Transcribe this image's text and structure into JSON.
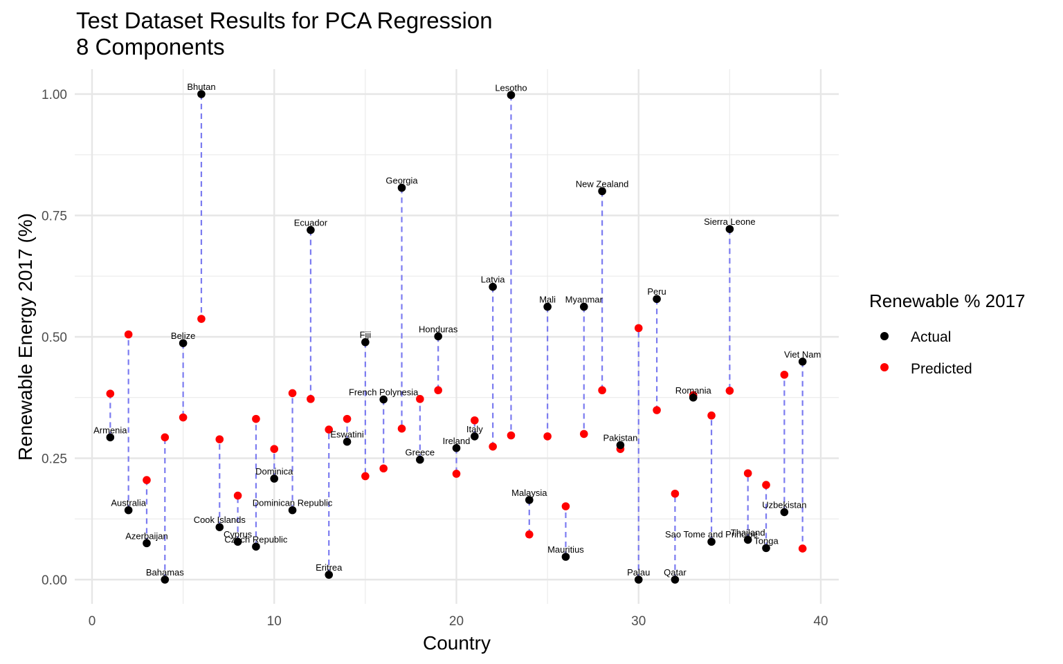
{
  "chart_data": {
    "type": "scatter",
    "title": "Test Dataset Results for PCA Regression",
    "subtitle": "8 Components",
    "xlabel": "Country",
    "ylabel": "Renewable Energy 2017 (%)",
    "xlim": [
      0,
      40
    ],
    "ylim": [
      0,
      1
    ],
    "x_ticks": [
      0,
      10,
      20,
      30,
      40
    ],
    "x_tick_labels": [
      "0",
      "10",
      "20",
      "30",
      "40"
    ],
    "y_ticks": [
      0,
      0.25,
      0.5,
      0.75,
      1
    ],
    "y_tick_labels": [
      "0.00",
      "0.25",
      "0.50",
      "0.75",
      "1.00"
    ],
    "grid": true,
    "legend": {
      "title": "Renewable % 2017",
      "position": "right",
      "entries": [
        {
          "label": "Actual",
          "color": "#000000"
        },
        {
          "label": "Predicted",
          "color": "#ff0000"
        }
      ]
    },
    "connector_color": "#7b7bf0",
    "points": [
      {
        "x": 1,
        "country": "Armenia",
        "actual": 0.293,
        "predicted": 0.383
      },
      {
        "x": 2,
        "country": "Australia",
        "actual": 0.143,
        "predicted": 0.505
      },
      {
        "x": 3,
        "country": "Azerbaijan",
        "actual": 0.075,
        "predicted": 0.205
      },
      {
        "x": 4,
        "country": "Bahamas",
        "actual": 0.0,
        "predicted": 0.293
      },
      {
        "x": 5,
        "country": "Belize",
        "actual": 0.487,
        "predicted": 0.334
      },
      {
        "x": 6,
        "country": "Bhutan",
        "actual": 1.0,
        "predicted": 0.537
      },
      {
        "x": 7,
        "country": "Cook Islands",
        "actual": 0.108,
        "predicted": 0.289
      },
      {
        "x": 8,
        "country": "Cyprus",
        "actual": 0.078,
        "predicted": 0.173
      },
      {
        "x": 9,
        "country": "Czech Republic",
        "actual": 0.068,
        "predicted": 0.331
      },
      {
        "x": 10,
        "country": "Dominica",
        "actual": 0.208,
        "predicted": 0.269
      },
      {
        "x": 11,
        "country": "Dominican Republic",
        "actual": 0.143,
        "predicted": 0.384
      },
      {
        "x": 12,
        "country": "Ecuador",
        "actual": 0.72,
        "predicted": 0.372
      },
      {
        "x": 13,
        "country": "Eritrea",
        "actual": 0.01,
        "predicted": 0.309
      },
      {
        "x": 14,
        "country": "Eswatini",
        "actual": 0.284,
        "predicted": 0.331
      },
      {
        "x": 15,
        "country": "Fiji",
        "actual": 0.489,
        "predicted": 0.213
      },
      {
        "x": 16,
        "country": "French Polynesia",
        "actual": 0.371,
        "predicted": 0.229
      },
      {
        "x": 17,
        "country": "Georgia",
        "actual": 0.807,
        "predicted": 0.311
      },
      {
        "x": 18,
        "country": "Greece",
        "actual": 0.247,
        "predicted": 0.372
      },
      {
        "x": 19,
        "country": "Honduras",
        "actual": 0.501,
        "predicted": 0.39
      },
      {
        "x": 20,
        "country": "Ireland",
        "actual": 0.271,
        "predicted": 0.218
      },
      {
        "x": 21,
        "country": "Italy",
        "actual": 0.295,
        "predicted": 0.328
      },
      {
        "x": 22,
        "country": "Latvia",
        "actual": 0.603,
        "predicted": 0.274
      },
      {
        "x": 23,
        "country": "Lesotho",
        "actual": 0.998,
        "predicted": 0.297
      },
      {
        "x": 24,
        "country": "Malaysia",
        "actual": 0.164,
        "predicted": 0.093
      },
      {
        "x": 25,
        "country": "Mali",
        "actual": 0.562,
        "predicted": 0.295
      },
      {
        "x": 26,
        "country": "Mauritius",
        "actual": 0.047,
        "predicted": 0.151
      },
      {
        "x": 27,
        "country": "Myanmar",
        "actual": 0.562,
        "predicted": 0.3
      },
      {
        "x": 28,
        "country": "New Zealand",
        "actual": 0.8,
        "predicted": 0.39
      },
      {
        "x": 29,
        "country": "Pakistan",
        "actual": 0.277,
        "predicted": 0.269
      },
      {
        "x": 30,
        "country": "Palau",
        "actual": 0.0,
        "predicted": 0.518
      },
      {
        "x": 31,
        "country": "Peru",
        "actual": 0.578,
        "predicted": 0.349
      },
      {
        "x": 32,
        "country": "Qatar",
        "actual": 0.0,
        "predicted": 0.177
      },
      {
        "x": 33,
        "country": "Romania",
        "actual": 0.375,
        "predicted": 0.38
      },
      {
        "x": 34,
        "country": "Sao Tome and Principe",
        "actual": 0.078,
        "predicted": 0.338
      },
      {
        "x": 35,
        "country": "Sierra Leone",
        "actual": 0.722,
        "predicted": 0.389
      },
      {
        "x": 36,
        "country": "Thailand",
        "actual": 0.082,
        "predicted": 0.219
      },
      {
        "x": 37,
        "country": "Tonga",
        "actual": 0.065,
        "predicted": 0.195
      },
      {
        "x": 38,
        "country": "Uzbekistan",
        "actual": 0.139,
        "predicted": 0.422
      },
      {
        "x": 39,
        "country": "Viet Nam",
        "actual": 0.449,
        "predicted": 0.064
      }
    ]
  }
}
